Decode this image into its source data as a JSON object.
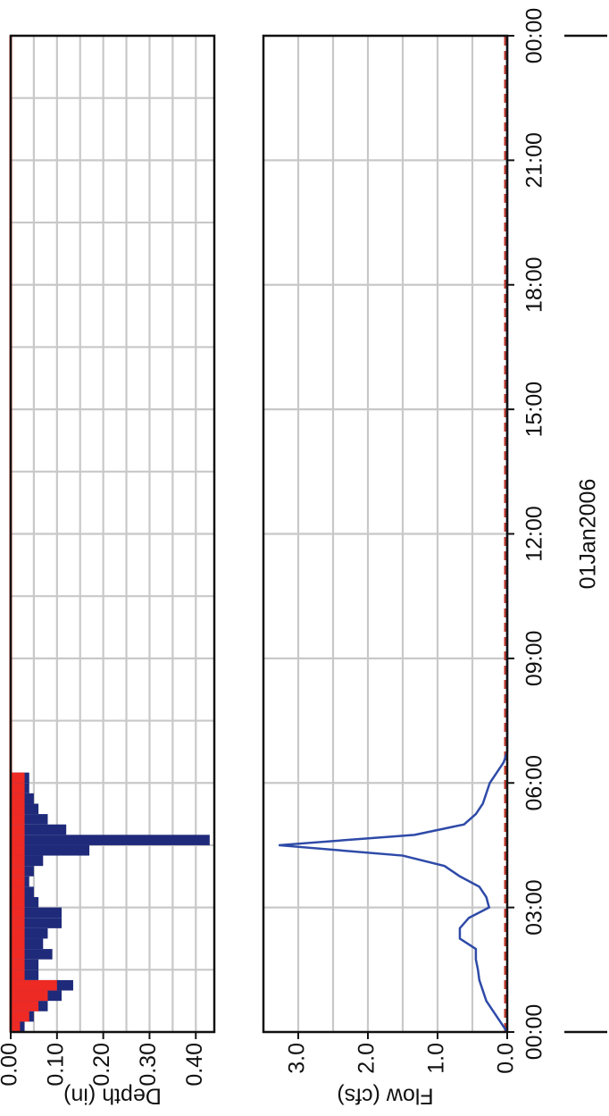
{
  "chart_data": [
    {
      "type": "histogram",
      "ylabel": "Depth (in)",
      "inverted": true,
      "bins": [
        0,
        0.25,
        0.5,
        0.75,
        1,
        1.25,
        1.5,
        1.75,
        2,
        2.25,
        2.5,
        2.75,
        3,
        3.25,
        3.5,
        3.75,
        4,
        4.25,
        4.5,
        4.75,
        5,
        5.25,
        5.5,
        5.75,
        6,
        6.25
      ],
      "series": [
        {
          "color": "#1f2a7a",
          "values": [
            0.03,
            0.05,
            0.08,
            0.11,
            0.135,
            0.06,
            0.06,
            0.09,
            0.07,
            0.08,
            0.11,
            0.11,
            0.06,
            0.05,
            0.04,
            0.05,
            0.07,
            0.17,
            0.43,
            0.12,
            0.08,
            0.06,
            0.05,
            0.04,
            0.04
          ]
        },
        {
          "color": "#ee2a24",
          "values": [
            0.02,
            0.04,
            0.06,
            0.08,
            0.1,
            0.03,
            0.03,
            0.03,
            0.03,
            0.03,
            0.03,
            0.03,
            0.03,
            0.03,
            0.03,
            0.03,
            0.03,
            0.03,
            0.03,
            0.03,
            0.03,
            0.03,
            0.03,
            0.03,
            0.03
          ]
        }
      ],
      "xlim": [
        0,
        24
      ],
      "xticks": [
        0,
        1.5,
        3,
        4.5,
        6,
        7.5,
        9,
        10.5,
        12,
        13.5,
        15,
        16.5,
        18,
        19.5,
        21,
        22.5,
        24
      ],
      "ylim": [
        0,
        0.44
      ],
      "yticks": [
        {
          "value": 0,
          "label": "0.00"
        },
        {
          "value": 0.1,
          "label": "0.10"
        },
        {
          "value": 0.2,
          "label": "0.20"
        },
        {
          "value": 0.3,
          "label": "0.30"
        },
        {
          "value": 0.4,
          "label": "0.40"
        }
      ],
      "ygrid": [
        0.05,
        0.15,
        0.25,
        0.35
      ],
      "grid": true
    },
    {
      "type": "line",
      "ylabel": "Flow (cfs)",
      "xlabel": "01Jan2006",
      "x": [
        0,
        0.25,
        0.5,
        0.75,
        1,
        1.25,
        1.5,
        1.75,
        2,
        2.25,
        2.5,
        2.75,
        3,
        3.25,
        3.5,
        3.75,
        4,
        4.25,
        4.5,
        4.75,
        5,
        5.25,
        5.5,
        5.75,
        6,
        6.25,
        6.5,
        6.75,
        24
      ],
      "series": [
        {
          "color": "#2e4aa8",
          "values": [
            0,
            0.1,
            0.2,
            0.3,
            0.35,
            0.4,
            0.42,
            0.45,
            0.45,
            0.68,
            0.68,
            0.55,
            0.26,
            0.3,
            0.4,
            0.68,
            0.9,
            1.5,
            3.28,
            1.33,
            0.62,
            0.45,
            0.35,
            0.3,
            0.25,
            0.15,
            0.05,
            0,
            0
          ]
        }
      ],
      "xlim": [
        0,
        24
      ],
      "xticks": [
        {
          "value": 0,
          "label": "00:00"
        },
        {
          "value": 3,
          "label": "03:00"
        },
        {
          "value": 6,
          "label": "06:00"
        },
        {
          "value": 9,
          "label": "09:00"
        },
        {
          "value": 12,
          "label": "12:00"
        },
        {
          "value": 15,
          "label": "15:00"
        },
        {
          "value": 18,
          "label": "18:00"
        },
        {
          "value": 21,
          "label": "21:00"
        },
        {
          "value": 24,
          "label": "00:00"
        }
      ],
      "ylim": [
        0,
        3.5
      ],
      "yticks": [
        {
          "value": 0,
          "label": "0.0"
        },
        {
          "value": 1,
          "label": "1.0"
        },
        {
          "value": 2,
          "label": "2.0"
        },
        {
          "value": 3,
          "label": "3.0"
        }
      ],
      "ygrid": [
        0.5,
        1.5,
        2.5
      ],
      "grid": true
    }
  ]
}
